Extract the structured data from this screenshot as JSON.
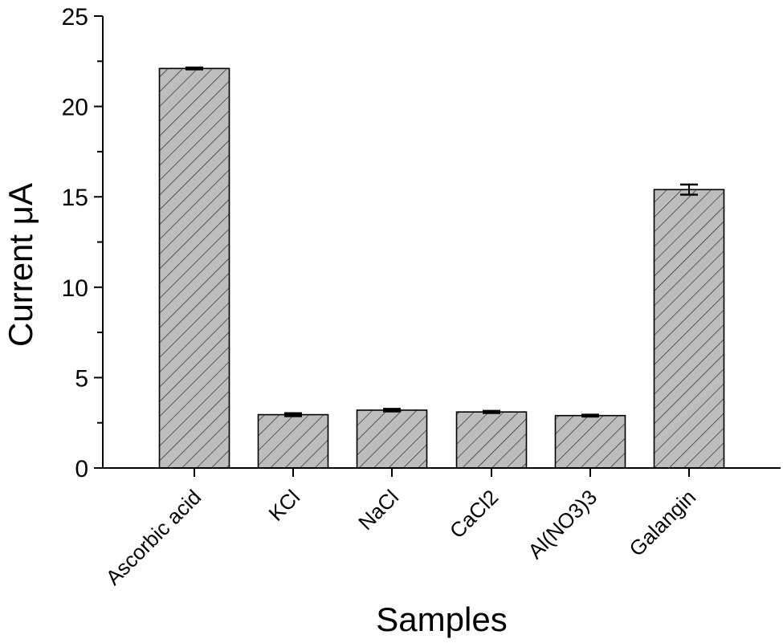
{
  "chart_data": {
    "type": "bar",
    "title": "",
    "xlabel": "Samples",
    "ylabel": "Current μA",
    "categories": [
      "Ascorbic acid",
      "KCl",
      "NaCl",
      "CaCl2",
      "Al(NO3)3",
      "Galangin"
    ],
    "values": [
      22.1,
      2.95,
      3.2,
      3.1,
      2.9,
      15.4
    ],
    "errors": [
      0.05,
      0.08,
      0.07,
      0.06,
      0.05,
      0.28
    ],
    "ylim": [
      0,
      25
    ],
    "yticks": [
      0,
      5,
      10,
      15,
      20,
      25
    ],
    "grid": false,
    "legend": null,
    "bar_fill": "#bdbdbd",
    "bar_hatch": "diagonal",
    "bar_edge": "#000000"
  }
}
